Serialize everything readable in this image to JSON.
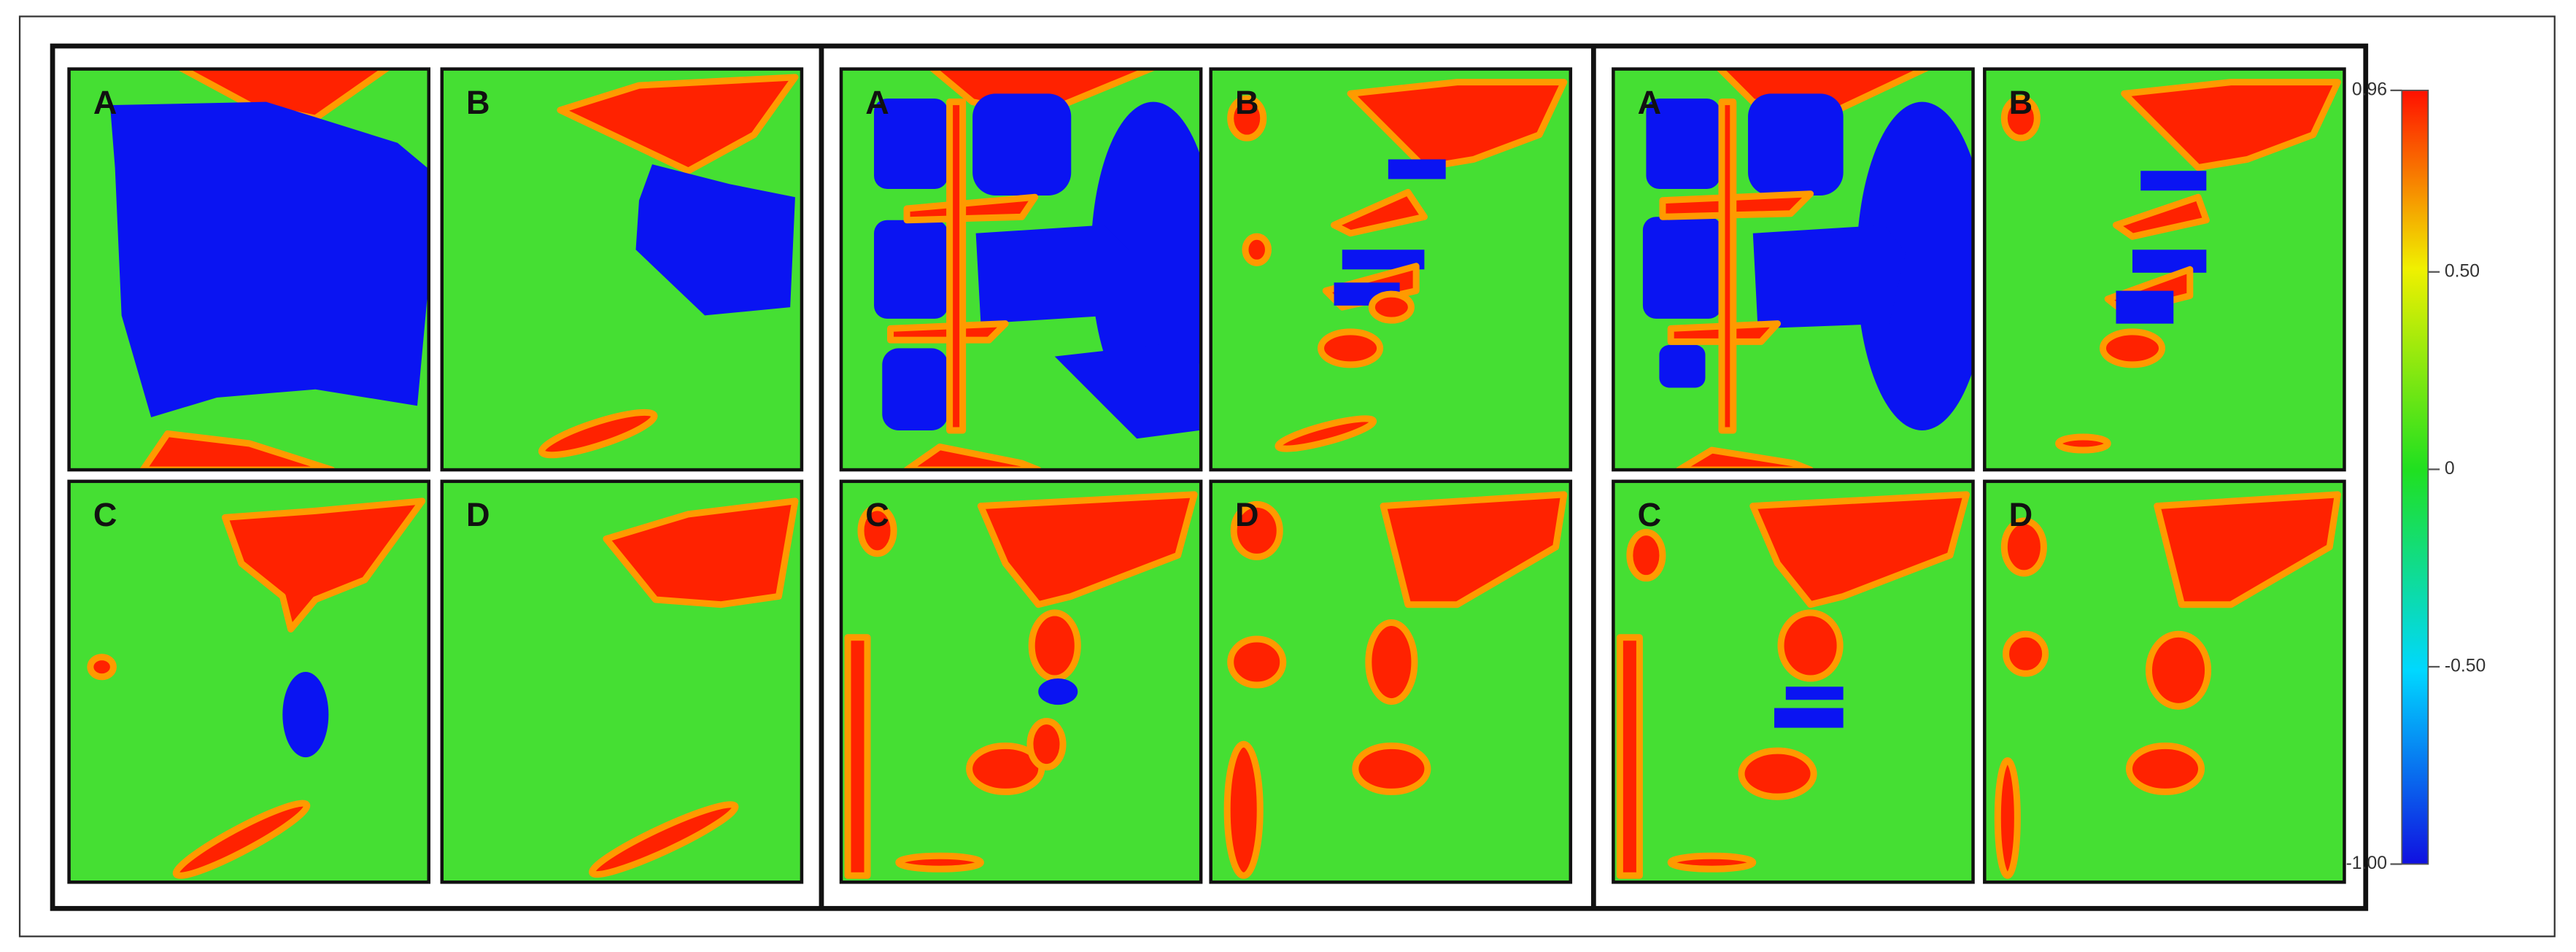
{
  "groups": [
    {
      "panels": [
        {
          "label": "A"
        },
        {
          "label": "B"
        },
        {
          "label": "C"
        },
        {
          "label": "D"
        }
      ]
    },
    {
      "panels": [
        {
          "label": "A"
        },
        {
          "label": "B"
        },
        {
          "label": "C"
        },
        {
          "label": "D"
        }
      ]
    },
    {
      "panels": [
        {
          "label": "A"
        },
        {
          "label": "B"
        },
        {
          "label": "C"
        },
        {
          "label": "D"
        }
      ]
    }
  ],
  "colorbar": {
    "ticks": [
      0.96,
      {
        "value": 0.5,
        "label": "0.50"
      },
      0,
      {
        "value": -0.5,
        "label": "-0.50"
      },
      {
        "value": -1,
        "label": "-1.00"
      }
    ]
  }
}
